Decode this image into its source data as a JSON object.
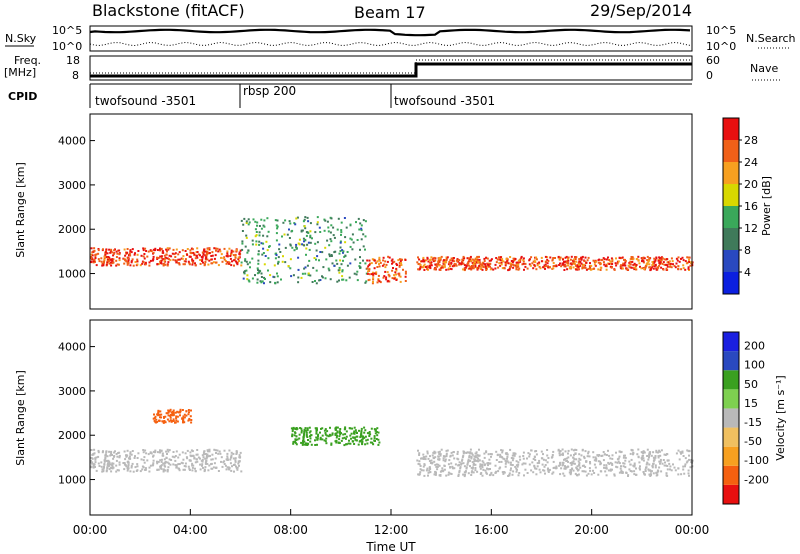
{
  "header": {
    "title": "Blackstone (fitACF)",
    "beam": "Beam 17",
    "date": "29/Sep/2014"
  },
  "top_panel": {
    "left_labels": {
      "nsky": "N.Sky",
      "freq": "Freq.",
      "mhz": "[MHz]",
      "cpid": "CPID"
    },
    "left_ticks": {
      "nsky_hi": "10^5",
      "nsky_lo": "10^0",
      "freq_hi": "18",
      "freq_lo": "8"
    },
    "right_labels": {
      "nsearch": "N.Search",
      "nave": "Nave"
    },
    "right_ticks": {
      "nsearch_hi": "10^5",
      "nsearch_lo": "10^0",
      "nave_hi": "60",
      "nave_lo": "0"
    },
    "cpid_segments": [
      {
        "label": "twofsound -3501",
        "start_hour": 0.0
      },
      {
        "label": "rbsp 200",
        "start_hour": 6.0
      },
      {
        "label": "twofsound -3501",
        "start_hour": 12.0
      }
    ]
  },
  "colors": {
    "power": [
      "#0b1fe0",
      "#2a49c0",
      "#3f7a5a",
      "#3aa85a",
      "#d8d800",
      "#f7a020",
      "#f06018",
      "#e81010"
    ],
    "velocity": [
      "#e81010",
      "#f56010",
      "#f7a020",
      "#f0c060",
      "#b9b9b9",
      "#7ed050",
      "#3aa020",
      "#2a49c0",
      "#1a1fe0"
    ]
  },
  "chart_data": [
    {
      "type": "heatmap",
      "panel": "power",
      "ylabel": "Slant Range [km]",
      "yticks": [
        "1000",
        "2000",
        "3000",
        "4000"
      ],
      "ylim": [
        200,
        4600
      ],
      "xlim": [
        0,
        24
      ],
      "colorbar_label": "Power [dB]",
      "colorbar_ticks": [
        "4",
        "8",
        "12",
        "16",
        "20",
        "24",
        "28"
      ],
      "colorbar_range": [
        0,
        32
      ],
      "bands": [
        {
          "t0": 0.0,
          "t1": 6.0,
          "r0": 1200,
          "r1": 1600,
          "value": 28
        },
        {
          "t0": 6.0,
          "t1": 11.0,
          "r0": 800,
          "r1": 2300,
          "value": 12
        },
        {
          "t0": 11.0,
          "t1": 12.6,
          "r0": 800,
          "r1": 1400,
          "value": 26
        },
        {
          "t0": 13.0,
          "t1": 24.0,
          "r0": 1100,
          "r1": 1400,
          "value": 27
        }
      ]
    },
    {
      "type": "heatmap",
      "panel": "velocity",
      "xlabel": "Time UT",
      "ylabel": "Slant Range [km]",
      "yticks": [
        "1000",
        "2000",
        "3000",
        "4000"
      ],
      "ylim": [
        200,
        4600
      ],
      "xticks": [
        "00:00",
        "04:00",
        "08:00",
        "12:00",
        "16:00",
        "20:00",
        "00:00"
      ],
      "xlim": [
        0,
        24
      ],
      "colorbar_label": "Velocity [m s⁻¹]",
      "colorbar_ticks": [
        "200",
        "100",
        "50",
        "15",
        "-15",
        "-50",
        "-100",
        "-200"
      ],
      "bands": [
        {
          "t0": 0.0,
          "t1": 6.0,
          "r0": 1200,
          "r1": 1700,
          "value": 0
        },
        {
          "t0": 2.5,
          "t1": 4.0,
          "r0": 2300,
          "r1": 2600,
          "value": -150
        },
        {
          "t0": 8.0,
          "t1": 11.5,
          "r0": 1800,
          "r1": 2200,
          "value": 60
        },
        {
          "t0": 13.0,
          "t1": 24.0,
          "r0": 1100,
          "r1": 1700,
          "value": 0
        }
      ]
    }
  ]
}
